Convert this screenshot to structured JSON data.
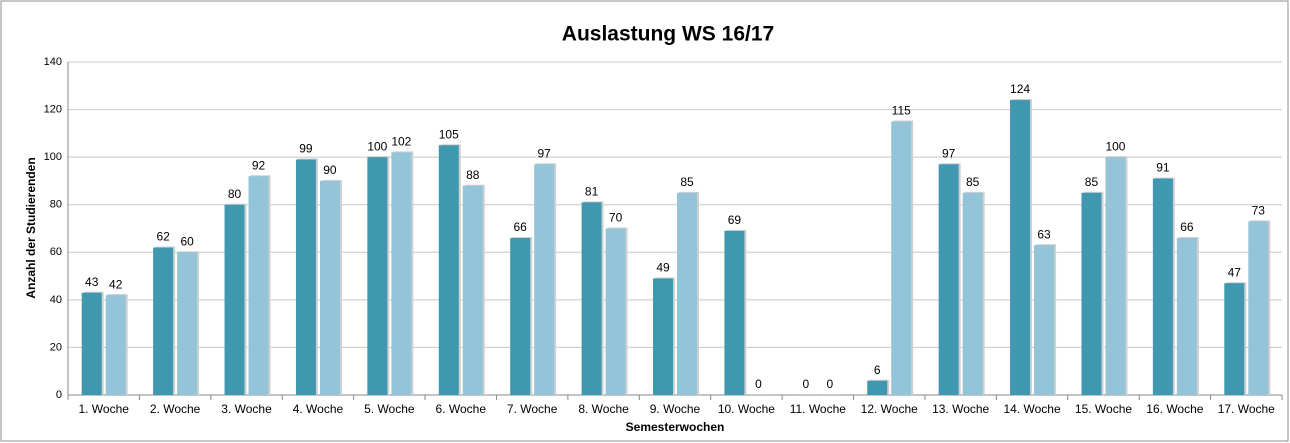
{
  "chart_data": {
    "type": "bar",
    "title": "Auslastung WS 16/17",
    "x_label": "Semesterwochen",
    "y_label": "Anzahl der Studierenden",
    "categories": [
      "1. Woche",
      "2. Woche",
      "3. Woche",
      "4. Woche",
      "5. Woche",
      "6. Woche",
      "7. Woche",
      "8. Woche",
      "9. Woche",
      "10. Woche",
      "11. Woche",
      "12. Woche",
      "13. Woche",
      "14. Woche",
      "15. Woche",
      "16. Woche",
      "17. Woche"
    ],
    "series": [
      {
        "color": "#3f97b0",
        "values": [
          43,
          62,
          80,
          99,
          100,
          105,
          66,
          81,
          49,
          69,
          0,
          6,
          97,
          124,
          85,
          91,
          47
        ]
      },
      {
        "color": "#93c4d7",
        "values": [
          42,
          60,
          92,
          90,
          102,
          88,
          97,
          70,
          85,
          0,
          0,
          115,
          85,
          63,
          100,
          66,
          73
        ]
      }
    ],
    "ylim": [
      0,
      140
    ],
    "yticks": [
      0,
      20,
      40,
      60,
      80,
      100,
      120,
      140
    ],
    "grid": true
  }
}
